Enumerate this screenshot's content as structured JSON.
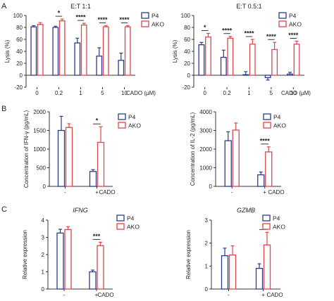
{
  "colors": {
    "P4": "#2b3b8f",
    "AKO": "#d9484b"
  },
  "panel_labels": [
    "A",
    "B",
    "C"
  ],
  "chart_data": [
    {
      "type": "bar",
      "panel": "A",
      "title": "E:T 1:1",
      "ylabel": "Lysis (%)",
      "xunit": "CADO (μM)",
      "categories": [
        "0",
        "0.2",
        "1",
        "5",
        "10"
      ],
      "ylim": [
        -20,
        100
      ],
      "yticks": [
        "-20",
        "0",
        "20",
        "40",
        "60",
        "80",
        "100"
      ],
      "legend": [
        "P4",
        "AKO"
      ],
      "series": [
        {
          "name": "P4",
          "values": [
            81,
            80,
            54,
            32,
            25
          ],
          "errors": [
            2,
            2,
            8,
            14,
            12
          ]
        },
        {
          "name": "AKO",
          "values": [
            85,
            91,
            84,
            81,
            81
          ],
          "errors": [
            3,
            3,
            3,
            2,
            2
          ]
        }
      ],
      "significance": [
        "",
        "*",
        "****",
        "****",
        "****"
      ]
    },
    {
      "type": "bar",
      "panel": "A",
      "title": "E:T 0.5:1",
      "ylabel": "Lysis (%)",
      "xunit": "CADO (μM)",
      "categories": [
        "0",
        "0.2",
        "1",
        "5",
        "10"
      ],
      "ylim": [
        -20,
        100
      ],
      "yticks": [
        "-20",
        "0",
        "20",
        "40",
        "60",
        "80",
        "100"
      ],
      "legend": [
        "P4",
        "AKO"
      ],
      "series": [
        {
          "name": "P4",
          "values": [
            51,
            30,
            1,
            -4,
            2
          ],
          "errors": [
            4,
            12,
            5,
            4,
            3
          ]
        },
        {
          "name": "AKO",
          "values": [
            64,
            62,
            52,
            43,
            52
          ],
          "errors": [
            6,
            3,
            8,
            12,
            5
          ]
        }
      ],
      "significance": [
        "*",
        "****",
        "****",
        "****",
        "****"
      ]
    },
    {
      "type": "bar",
      "panel": "B",
      "title": "",
      "ylabel": "Concentration of IFN-γ (pg/mL)",
      "xunit": "CADO",
      "categories": [
        "-",
        "+"
      ],
      "ylim": [
        0,
        2000
      ],
      "yticks": [
        "0",
        "500",
        "1000",
        "1500",
        "2000"
      ],
      "legend": [
        "P4",
        "AKO"
      ],
      "series": [
        {
          "name": "P4",
          "values": [
            1500,
            400
          ],
          "errors": [
            380,
            50
          ]
        },
        {
          "name": "AKO",
          "values": [
            1580,
            1180
          ],
          "errors": [
            100,
            420
          ]
        }
      ],
      "significance": [
        "",
        "*"
      ]
    },
    {
      "type": "bar",
      "panel": "B",
      "title": "",
      "ylabel": "Concentration of IL-2 (pg/mL)",
      "xunit": "CADO",
      "categories": [
        "-",
        "+"
      ],
      "ylim": [
        0,
        4000
      ],
      "yticks": [
        "0",
        "1000",
        "2000",
        "3000",
        "4000"
      ],
      "legend": [
        "P4",
        "AKO"
      ],
      "series": [
        {
          "name": "P4",
          "values": [
            2450,
            620
          ],
          "errors": [
            480,
            150
          ]
        },
        {
          "name": "AKO",
          "values": [
            3020,
            1850
          ],
          "errors": [
            380,
            270
          ]
        }
      ],
      "significance": [
        "",
        "****"
      ]
    },
    {
      "type": "bar",
      "panel": "C",
      "title": "IFNG",
      "ylabel": "Relative expression",
      "xunit": "CADO",
      "categories": [
        "-",
        "+"
      ],
      "ylim": [
        0,
        4
      ],
      "yticks": [
        "0",
        "1",
        "2",
        "3",
        "4"
      ],
      "legend": [
        "P4",
        "AKO"
      ],
      "series": [
        {
          "name": "P4",
          "values": [
            3.25,
            1.0
          ],
          "errors": [
            0.22,
            0.1
          ]
        },
        {
          "name": "AKO",
          "values": [
            3.45,
            2.52
          ],
          "errors": [
            0.17,
            0.2
          ]
        }
      ],
      "significance": [
        "",
        "***"
      ]
    },
    {
      "type": "bar",
      "panel": "C",
      "title": "GZMB",
      "ylabel": "Relative expression",
      "xunit": "CADO",
      "categories": [
        "-",
        "+"
      ],
      "ylim": [
        0,
        3
      ],
      "yticks": [
        "0",
        "1",
        "2",
        "3"
      ],
      "legend": [
        "P4",
        "AKO"
      ],
      "series": [
        {
          "name": "P4",
          "values": [
            1.45,
            0.9
          ],
          "errors": [
            0.33,
            0.2
          ]
        },
        {
          "name": "AKO",
          "values": [
            1.48,
            1.92
          ],
          "errors": [
            0.4,
            0.55
          ]
        }
      ],
      "significance": [
        "",
        "*"
      ]
    }
  ]
}
